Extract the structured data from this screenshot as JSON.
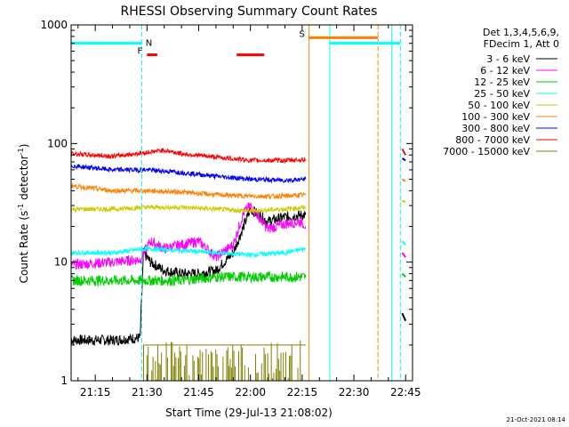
{
  "chart_data": {
    "type": "line",
    "title": "RHESSI Observing Summary Count Rates",
    "xlabel": "Start Time (29-Jul-13 21:08:02)",
    "ylabel_main": "Count Rate (s",
    "ylabel_sup1": "-1",
    "ylabel_mid": " detector",
    "ylabel_sup2": "-1",
    "ylabel_end": ")",
    "y_scale": "log",
    "ylim": [
      1,
      1000
    ],
    "x_range": [
      "21:08",
      "22:47"
    ],
    "x_ticks": [
      {
        "label": "21:15",
        "value": "21:15"
      },
      {
        "label": "21:30",
        "value": "21:30"
      },
      {
        "label": "21:45",
        "value": "21:45"
      },
      {
        "label": "22:00",
        "value": "22:00"
      },
      {
        "label": "22:15",
        "value": "22:15"
      },
      {
        "label": "22:30",
        "value": "22:30"
      },
      {
        "label": "22:45",
        "value": "22:45"
      }
    ],
    "y_ticks": [
      {
        "label": "1",
        "value": 1
      },
      {
        "label": "10",
        "value": 10
      },
      {
        "label": "100",
        "value": 100
      },
      {
        "label": "1000",
        "value": 1000
      }
    ],
    "legend": {
      "placement": "right",
      "header1": "Det 1,3,4,5,6,9,",
      "header2": "FDecim 1, Att 0"
    },
    "series": [
      {
        "name": "3 - 6 keV",
        "color": "#000000",
        "points": [
          [
            "21:08",
            2.2
          ],
          [
            "21:20",
            2.2
          ],
          [
            "21:28",
            2.3
          ],
          [
            "21:29",
            12
          ],
          [
            "21:31",
            10
          ],
          [
            "21:35",
            8.5
          ],
          [
            "21:40",
            8
          ],
          [
            "21:45",
            8
          ],
          [
            "21:50",
            8.5
          ],
          [
            "21:55",
            12
          ],
          [
            "22:00",
            28
          ],
          [
            "22:05",
            22
          ],
          [
            "22:10",
            24
          ],
          [
            "22:15",
            25
          ],
          [
            "22:16",
            25
          ]
        ]
      },
      {
        "name": "6 - 12 keV",
        "color": "#ff00ff",
        "points": [
          [
            "21:08",
            9.5
          ],
          [
            "21:20",
            10
          ],
          [
            "21:28",
            10.5
          ],
          [
            "21:31",
            15
          ],
          [
            "21:35",
            13
          ],
          [
            "21:40",
            14
          ],
          [
            "21:45",
            15
          ],
          [
            "21:50",
            11
          ],
          [
            "21:55",
            14
          ],
          [
            "21:58",
            26
          ],
          [
            "22:00",
            30
          ],
          [
            "22:05",
            19
          ],
          [
            "22:10",
            21
          ],
          [
            "22:15",
            22
          ],
          [
            "22:16",
            20
          ]
        ]
      },
      {
        "name": "12 - 25 keV",
        "color": "#00cc00",
        "points": [
          [
            "21:08",
            7
          ],
          [
            "21:20",
            7
          ],
          [
            "21:30",
            7
          ],
          [
            "21:40",
            7
          ],
          [
            "21:50",
            7.5
          ],
          [
            "22:00",
            7.5
          ],
          [
            "22:10",
            7.5
          ],
          [
            "22:16",
            7.5
          ]
        ]
      },
      {
        "name": "25 - 50 keV",
        "color": "#00ffff",
        "points": [
          [
            "21:08",
            12
          ],
          [
            "21:20",
            12
          ],
          [
            "21:30",
            13
          ],
          [
            "21:40",
            12.5
          ],
          [
            "21:50",
            12
          ],
          [
            "22:00",
            11.5
          ],
          [
            "22:10",
            12
          ],
          [
            "22:16",
            13
          ]
        ]
      },
      {
        "name": "50 - 100 keV",
        "color": "#cccc00",
        "points": [
          [
            "21:08",
            28
          ],
          [
            "21:20",
            28
          ],
          [
            "21:30",
            29
          ],
          [
            "21:40",
            29
          ],
          [
            "21:50",
            28
          ],
          [
            "22:00",
            27
          ],
          [
            "22:10",
            28
          ],
          [
            "22:16",
            29
          ]
        ]
      },
      {
        "name": "100 - 300 keV",
        "color": "#ff8000",
        "points": [
          [
            "21:08",
            44
          ],
          [
            "21:20",
            40
          ],
          [
            "21:30",
            40
          ],
          [
            "21:40",
            39
          ],
          [
            "21:50",
            37
          ],
          [
            "22:00",
            36
          ],
          [
            "22:10",
            36
          ],
          [
            "22:16",
            37
          ]
        ]
      },
      {
        "name": "300 - 800 keV",
        "color": "#0000ff",
        "points": [
          [
            "21:08",
            65
          ],
          [
            "21:20",
            60
          ],
          [
            "21:30",
            60
          ],
          [
            "21:40",
            57
          ],
          [
            "21:50",
            53
          ],
          [
            "22:00",
            50
          ],
          [
            "22:10",
            49
          ],
          [
            "22:16",
            50
          ]
        ]
      },
      {
        "name": "800 - 7000 keV",
        "color": "#ff0000",
        "points": [
          [
            "21:08",
            82
          ],
          [
            "21:20",
            78
          ],
          [
            "21:30",
            84
          ],
          [
            "21:35",
            88
          ],
          [
            "21:40",
            82
          ],
          [
            "21:50",
            77
          ],
          [
            "22:00",
            72
          ],
          [
            "22:10",
            72
          ],
          [
            "22:16",
            73
          ]
        ]
      },
      {
        "name": "7000 - 15000 keV",
        "color": "#808000",
        "points": [
          [
            "21:08",
            1
          ],
          [
            "21:29",
            1
          ],
          [
            "21:29",
            2
          ],
          [
            "21:37",
            2
          ],
          [
            "22:16",
            2
          ]
        ]
      }
    ],
    "late_segment": [
      {
        "color": "#ff0000",
        "points": [
          [
            "22:44",
            90
          ],
          [
            "22:45",
            80
          ]
        ]
      },
      {
        "color": "#0000ff",
        "points": [
          [
            "22:44",
            75
          ],
          [
            "22:45",
            72
          ]
        ]
      },
      {
        "color": "#ff8000",
        "points": [
          [
            "22:44",
            50
          ],
          [
            "22:45",
            48
          ]
        ]
      },
      {
        "color": "#cccc00",
        "points": [
          [
            "22:44",
            33
          ],
          [
            "22:45",
            32
          ]
        ]
      },
      {
        "color": "#00ffff",
        "points": [
          [
            "22:44",
            15
          ],
          [
            "22:45",
            14
          ]
        ]
      },
      {
        "color": "#ff00ff",
        "points": [
          [
            "22:44",
            12
          ],
          [
            "22:45",
            11
          ]
        ]
      },
      {
        "color": "#00cc00",
        "points": [
          [
            "22:44",
            8
          ],
          [
            "22:45",
            7.5
          ]
        ]
      },
      {
        "color": "#000000",
        "points": [
          [
            "22:44",
            3.7
          ],
          [
            "22:45",
            3.2
          ]
        ]
      }
    ],
    "annotations": [
      {
        "type": "vline",
        "x": "21:08",
        "color": "#00ffff",
        "style": "solid"
      },
      {
        "type": "vline",
        "x": "21:28:30",
        "color": "#00ffff",
        "style": "dashed"
      },
      {
        "type": "vline",
        "x": "22:17",
        "color": "#ff8000",
        "style": "solid"
      },
      {
        "type": "vline",
        "x": "22:23",
        "color": "#00ffff",
        "style": "solid"
      },
      {
        "type": "vline",
        "x": "22:37",
        "color": "#ff8000",
        "style": "dashed"
      },
      {
        "type": "vline",
        "x": "22:41",
        "color": "#00ffff",
        "style": "solid"
      },
      {
        "type": "vline",
        "x": "22:43:30",
        "color": "#00ffff",
        "style": "dashed"
      },
      {
        "type": "bar",
        "x0": "21:08",
        "x1": "21:28:30",
        "y": 700,
        "color": "#00ffff",
        "label": "N"
      },
      {
        "type": "bar",
        "x0": "22:23",
        "x1": "22:43:30",
        "y": 700,
        "color": "#00ffff",
        "label": ""
      },
      {
        "type": "bar",
        "x0": "22:17",
        "x1": "22:37",
        "y": 780,
        "color": "#ff8000",
        "label": "S"
      },
      {
        "type": "bar",
        "x0": "21:30",
        "x1": "21:33",
        "y": 560,
        "color": "#ff0000",
        "label": "F"
      },
      {
        "type": "bar",
        "x0": "21:56",
        "x1": "22:04",
        "y": 560,
        "color": "#ff0000",
        "label": ""
      }
    ],
    "grid": false
  },
  "timestamp": "21-Oct-2021 08:14"
}
